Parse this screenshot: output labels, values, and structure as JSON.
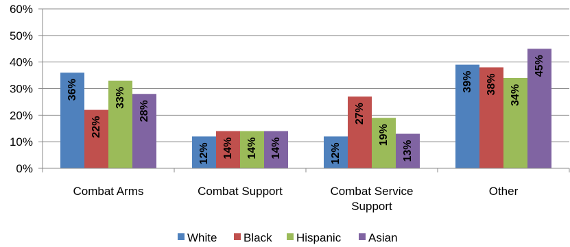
{
  "chart_data": {
    "type": "bar",
    "categories": [
      [
        "Combat Arms"
      ],
      [
        "Combat Support"
      ],
      [
        "Combat Service",
        "Support"
      ],
      [
        "Other"
      ]
    ],
    "series": [
      {
        "name": "White",
        "color": "#4F81BD",
        "values": [
          36,
          12,
          12,
          39
        ],
        "labels": [
          "36%",
          "12%",
          "12%",
          "39%"
        ]
      },
      {
        "name": "Black",
        "color": "#C0504D",
        "values": [
          22,
          14,
          27,
          38
        ],
        "labels": [
          "22%",
          "14%",
          "27%",
          "38%"
        ]
      },
      {
        "name": "Hispanic",
        "color": "#9BBB59",
        "values": [
          33,
          14,
          19,
          34
        ],
        "labels": [
          "33%",
          "14%",
          "19%",
          "34%"
        ]
      },
      {
        "name": "Asian",
        "color": "#8064A2",
        "values": [
          28,
          14,
          13,
          45
        ],
        "labels": [
          "28%",
          "14%",
          "13%",
          "45%"
        ]
      }
    ],
    "ylim": [
      0,
      60
    ],
    "yticks": [
      0,
      10,
      20,
      30,
      40,
      50,
      60
    ],
    "ytick_labels": [
      "0%",
      "10%",
      "20%",
      "30%",
      "40%",
      "50%",
      "60%"
    ],
    "grid": true,
    "legend_position": "bottom"
  }
}
